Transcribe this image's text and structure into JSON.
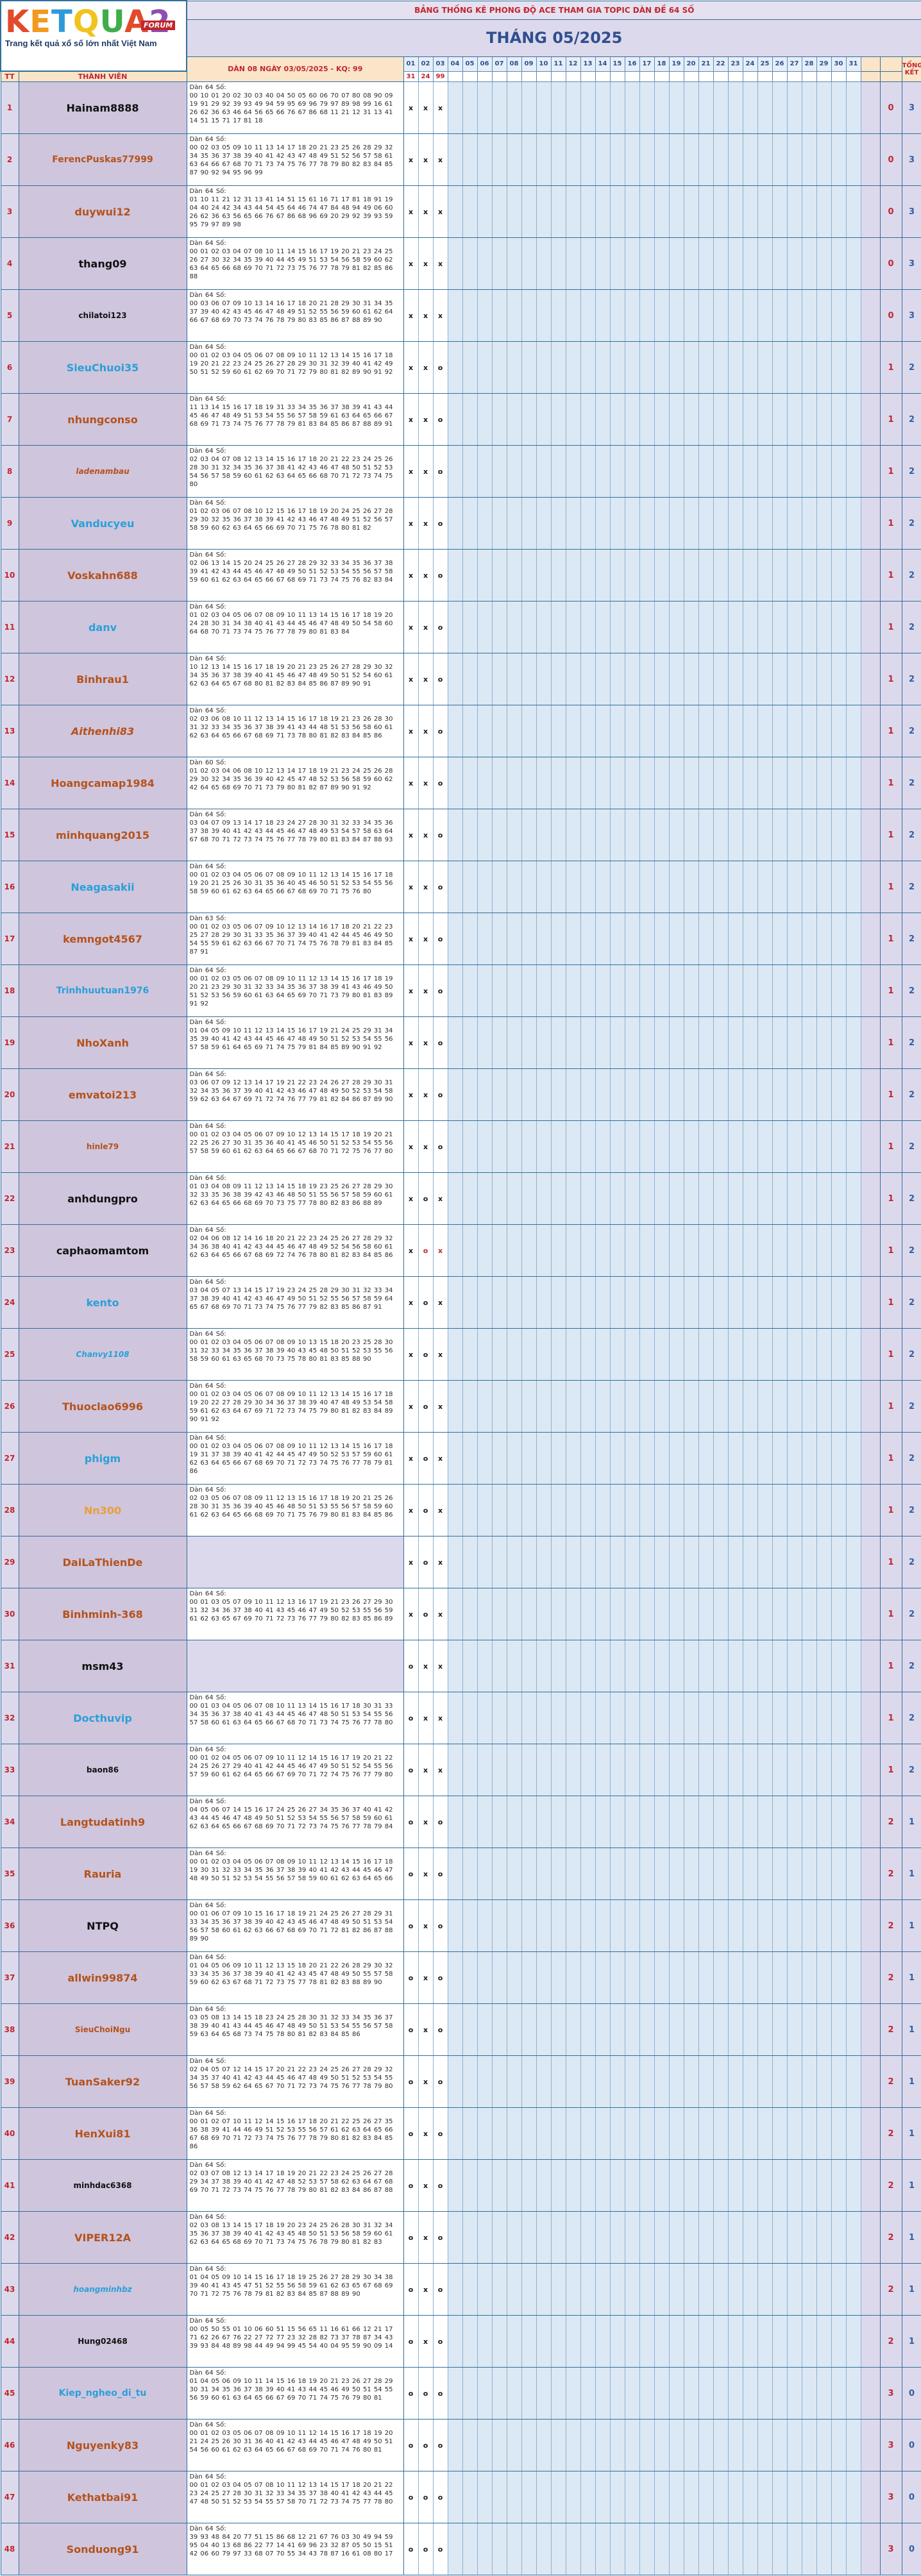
{
  "header": {
    "banner": "BẢNG THỐNG KÊ PHONG ĐỘ ACE THAM GIA TOPIC DÀN ĐỀ 64 SỐ",
    "month": "THÁNG 05/2025",
    "logo_text": "KETQUA2",
    "logo_forum": "FORUM",
    "logo_tagline": "Trang kết quả xổ số lớn nhất Việt Nam",
    "col_tt": "TT",
    "col_member": "THÀNH VIÊN",
    "col_dan": "DÀN 08 NGÀY 03/05/2025 - KQ: 99",
    "col_total": "TỔNG KẾT",
    "days": [
      "01",
      "02",
      "03",
      "04",
      "05",
      "06",
      "07",
      "08",
      "09",
      "10",
      "11",
      "12",
      "13",
      "14",
      "15",
      "16",
      "17",
      "18",
      "19",
      "20",
      "21",
      "22",
      "23",
      "24",
      "25",
      "26",
      "27",
      "28",
      "29",
      "30",
      "31"
    ],
    "results": [
      "31",
      "24",
      "99"
    ]
  },
  "rows": [
    {
      "tt": "1",
      "name": "Hainam8888",
      "color": "#111111",
      "dan": "Dàn 64 Số:\n00 10 01 20 02 30 03 40 04 50 05 60 06 70 07 80 08 90 09 19 91 29 92 39 93 49 94 59 95 69 96 79 97 89 98 99 16 61 26 62 36 63 46 64 56 65 66 76 67 86 68 11 21 12 31 13 41 14 51 15 71 17 81 18",
      "m": [
        "x",
        "x",
        "x"
      ],
      "a": "0",
      "b": "3"
    },
    {
      "tt": "2",
      "name": "FerencPuskas77999",
      "color": "#b5521b",
      "dan": "Dàn 64 Số:\n00 02 03 05 09 10 11 13 14 17 18 20 21 23 25 26 28 29 32 34 35 36 37 38 39 40 41 42 43 47 48 49 51 52 56 57 58 61 63 64 66 67 68 70 71 73 74 75 76 77 78 79 80 82 83 84 85 87 90 92 94 95 96 99",
      "m": [
        "x",
        "x",
        "x"
      ],
      "a": "0",
      "b": "3"
    },
    {
      "tt": "3",
      "name": "duywui12",
      "color": "#b5521b",
      "dan": "Dàn 64 Số:\n01 10 11 21 12 31 13 41 14 51 15 61 16 71 17 81 18 91 19 04 40 24 42 34 43 44 54 45 64 46 74 47 84 48 94 49 06 60 26 62 36 63 56 65 66 76 67 86 68 96 69 20 29 92 39 93 59 95 79 97 89 98",
      "m": [
        "x",
        "x",
        "x"
      ],
      "a": "0",
      "b": "3"
    },
    {
      "tt": "4",
      "name": "thang09",
      "color": "#111111",
      "dan": "Dàn 64 Số:\n00 01 02 03 04 07 08 10 11 14 15 16 17 19 20 21 23 24 25 26 27 30 32 34 35 39 40 44 45 49 51 53 54 56 58 59 60 62 63 64 65 66 68 69 70 71 72 73 75 76 77 78 79 81 82 85 86 88",
      "m": [
        "x",
        "x",
        "x"
      ],
      "a": "0",
      "b": "3"
    },
    {
      "tt": "5",
      "name": "chilatoi123",
      "color": "#111111",
      "dan": "Dàn 64 Số:\n00 03 06 07 09 10 13 14 16 17 18 20 21 28 29 30 31 34 35 37 39 40 42 43 45 46 47 48 49 51 52 55 56 59 60 61 62 64 66 67 68 69 70 73 74 76 78 79 80 83 85 86 87 88 89 90",
      "m": [
        "x",
        "x",
        "x"
      ],
      "a": "0",
      "b": "3"
    },
    {
      "tt": "6",
      "name": "SieuChuoi35",
      "color": "#2aa0d8",
      "dan": "Dàn 64 Số:\n00 01 02 03 04 05 06 07 08 09 10 11 12 13 14 15 16 17 18 19 20 21 22 23 24 25 26 27 28 29 30 31 32 39 40 41 42 49 50 51 52 59 60 61 62 69 70 71 72 79 80 81 82 89 90 91 92",
      "m": [
        "x",
        "x",
        "o"
      ],
      "a": "1",
      "b": "2"
    },
    {
      "tt": "7",
      "name": "nhungconso",
      "color": "#b5521b",
      "dan": "Dàn 64 Số:\n11 13 14 15 16 17 18 19 31 33 34 35 36 37 38 39 41 43 44 45 46 47 48 49 51 53 54 55 56 57 58 59 61 63 64 65 66 67 68 69 71 73 74 75 76 77 78 79 81 83 84 85 86 87 88 89 91",
      "m": [
        "x",
        "x",
        "o"
      ],
      "a": "1",
      "b": "2"
    },
    {
      "tt": "8",
      "name": "ladenambau",
      "color": "#b5521b",
      "dan": "Dàn 64 Số:\n02 03 04 07 08 12 13 14 15 16 17 18 20 21 22 23 24 25 26 28 30 31 32 34 35 36 37 38 41 42 43 46 47 48 50 51 52 53 54 56 57 58 59 60 61 62 63 64 65 66 68 70 71 72 73 74 75 80",
      "m": [
        "x",
        "x",
        "o"
      ],
      "a": "1",
      "b": "2"
    },
    {
      "tt": "9",
      "name": "Vanducyeu",
      "color": "#2aa0d8",
      "dan": "Dàn 64 Số:\n01 02 03 06 07 08 10 12 15 16 17 18 19 20 24 25 26 27 28 29 30 32 35 36 37 38 39 41 42 43 46 47 48 49 51 52 56 57 58 59 60 62 63 64 65 66 69 70 71 75 76 78 80 81 82",
      "m": [
        "x",
        "x",
        "o"
      ],
      "a": "1",
      "b": "2"
    },
    {
      "tt": "10",
      "name": "Voskahn688",
      "color": "#b5521b",
      "dan": "Dàn 64 Số:\n02 06 13 14 15 20 24 25 26 27 28 29 32 33 34 35 36 37 38 39 41 42 43 44 45 46 47 48 49 50 51 52 53 54 55 56 57 58 59 60 61 62 63 64 65 66 67 68 69 71 73 74 75 76 82 83 84",
      "m": [
        "x",
        "x",
        "o"
      ],
      "a": "1",
      "b": "2"
    },
    {
      "tt": "11",
      "name": "danv",
      "color": "#2aa0d8",
      "dan": "Dàn 64 Số:\n01 02 03 04 05 06 07 08 09 10 11 13 14 15 16 17 18 19 20 24 28 30 31 34 38 40 41 43 44 45 46 47 48 49 50 54 58 60 64 68 70 71 73 74 75 76 77 78 79 80 81 83 84",
      "m": [
        "x",
        "x",
        "o"
      ],
      "a": "1",
      "b": "2"
    },
    {
      "tt": "12",
      "name": "Binhrau1",
      "color": "#b5521b",
      "dan": "Dàn 64 Số:\n10 12 13 14 15 16 17 18 19 20 21 23 25 26 27 28 29 30 32 34 35 36 37 38 39 40 41 45 46 47 48 49 50 51 52 54 60 61 62 63 64 65 67 68 80 81 82 83 84 85 86 87 89 90 91",
      "m": [
        "x",
        "x",
        "o"
      ],
      "a": "1",
      "b": "2"
    },
    {
      "tt": "13",
      "name": "Aithenhi83",
      "color": "#b5521b",
      "dan": "Dàn 64 Số:\n02 03 06 08 10 11 12 13 14 15 16 17 18 19 21 23 26 28 30 31 32 33 34 35 36 37 38 39 41 43 44 48 51 53 56 58 60 61 62 63 64 65 66 67 68 69 71 73 78 80 81 82 83 84 85 86",
      "m": [
        "x",
        "x",
        "o"
      ],
      "a": "1",
      "b": "2"
    },
    {
      "tt": "14",
      "name": "Hoangcamap1984",
      "color": "#b5521b",
      "dan": "Dàn 60 Số:\n01 02 03 04 06 08 10 12 13 14 17 18 19 21 23 24 25 26 28 29 30 32 34 35 36 39 40 42 45 47 48 52 53 56 58 59 60 62 42 64 65 68 69 70 71 73 79 80 81 82 87 89 90 91 92",
      "m": [
        "x",
        "x",
        "o"
      ],
      "a": "1",
      "b": "2"
    },
    {
      "tt": "15",
      "name": "minhquang2015",
      "color": "#b5521b",
      "dan": "Dàn 64 Số:\n03 04 07 09 13 14 17 18 23 24 27 28 30 31 32 33 34 35 36 37 38 39 40 41 42 43 44 45 46 47 48 49 53 54 57 58 63 64 67 68 70 71 72 73 74 75 76 77 78 79 80 81 83 84 87 88 93",
      "m": [
        "x",
        "x",
        "o"
      ],
      "a": "1",
      "b": "2"
    },
    {
      "tt": "16",
      "name": "Neagasakii",
      "color": "#2aa0d8",
      "dan": "Dàn 64 Số:\n00 01 02 03 04 05 06 07 08 09 10 11 12 13 14 15 16 17 18 19 20 21 25 26 30 31 35 36 40 45 46 50 51 52 53 54 55 56 58 59 60 61 62 63 64 65 66 67 68 69 70 71 75 76 80",
      "m": [
        "x",
        "x",
        "o"
      ],
      "a": "1",
      "b": "2"
    },
    {
      "tt": "17",
      "name": "kemngot4567",
      "color": "#b5521b",
      "dan": "Dàn 63 Số:\n00 01 02 03 05 06 07 09 10 12 13 14 16 17 18 20 21 22 23 25 27 28 29 30 31 33 35 36 37 39 40 41 42 44 45 46 49 50 54 55 59 61 62 63 66 67 70 71 74 75 76 78 79 81 83 84 85 87 91",
      "m": [
        "x",
        "x",
        "o"
      ],
      "a": "1",
      "b": "2"
    },
    {
      "tt": "18",
      "name": "Trinhhuutuan1976",
      "color": "#2aa0d8",
      "dan": "Dàn 64 Số:\n00 01 02 03 05 06 07 08 09 10 11 12 13 14 15 16 17 18 19 20 21 23 29 30 31 32 33 34 35 36 37 38 39 41 43 46 49 50 51 52 53 56 59 60 61 63 64 65 69 70 71 73 79 80 81 83 89 91 92",
      "m": [
        "x",
        "x",
        "o"
      ],
      "a": "1",
      "b": "2"
    },
    {
      "tt": "19",
      "name": "NhoXanh",
      "color": "#b5521b",
      "dan": "Dàn 64 Số:\n01 04 05 09 10 11 12 13 14 15 16 17 19 21 24 25 29 31 34 35 39 40 41 42 43 44 45 46 47 48 49 50 51 52 53 54 55 56 57 58 59 61 64 65 69 71 74 75 79 81 84 85 89 90 91 92",
      "m": [
        "x",
        "x",
        "o"
      ],
      "a": "1",
      "b": "2"
    },
    {
      "tt": "20",
      "name": "emvatoi213",
      "color": "#b5521b",
      "dan": "Dàn 64 Số:\n03 06 07 09 12 13 14 17 19 21 22 23 24 26 27 28 29 30 31 32 34 35 36 37 39 40 41 42 43 46 47 48 49 50 52 53 54 58 59 62 63 64 67 69 71 72 74 76 77 79 81 82 84 86 87 89 90",
      "m": [
        "x",
        "x",
        "o"
      ],
      "a": "1",
      "b": "2"
    },
    {
      "tt": "21",
      "name": "hinle79",
      "color": "#b5521b",
      "dan": "Dàn 64 Số:\n00 01 02 03 04 05 06 07 09 10 12 13 14 15 17 18 19 20 21 22 25 26 27 30 31 35 36 40 41 45 46 50 51 52 53 54 55 56 57 58 59 60 61 62 63 64 65 66 67 68 70 71 72 75 76 77 80",
      "m": [
        "x",
        "x",
        "o"
      ],
      "a": "1",
      "b": "2"
    },
    {
      "tt": "22",
      "name": "anhdungpro",
      "color": "#111111",
      "dan": "Dàn 64 Số:\n01 03 04 08 09 11 12 13 14 15 18 19 23 25 26 27 28 29 30 32 33 35 36 38 39 42 43 46 48 50 51 55 56 57 58 59 60 61 62 63 64 65 66 68 69 70 73 75 77 78 80 82 83 86 88 89",
      "m": [
        "x",
        "o",
        "x"
      ],
      "a": "1",
      "b": "2"
    },
    {
      "tt": "23",
      "name": "caphaomamtom",
      "color": "#111111",
      "dan": "Dàn 64 Số:\n02 04 06 08 12 14 16 18 20 21 22 23 24 25 26 27 28 29 32 34 36 38 40 41 42 43 44 45 46 47 48 49 52 54 56 58 60 61 62 63 64 65 66 67 68 69 72 74 76 78 80 81 82 83 84 85 86",
      "m": [
        "x",
        "o",
        "x"
      ],
      "a": "1",
      "b": "2",
      "red": true
    },
    {
      "tt": "24",
      "name": "kento",
      "color": "#2aa0d8",
      "dan": "Dàn 64 Số:\n03 04 05 07 13 14 15 17 19 23 24 25 28 29 30 31 32 33 34 37 38 39 40 41 42 43 46 47 49 50 51 52 55 56 57 58 59 64 65 67 68 69 70 71 73 74 75 76 77 79 82 83 85 86 87 91",
      "m": [
        "x",
        "o",
        "x"
      ],
      "a": "1",
      "b": "2"
    },
    {
      "tt": "25",
      "name": "Chanvy1108",
      "color": "#2aa0d8",
      "dan": "Dàn 64 Số:\n00 01 02 03 04 05 06 07 08 09 10 13 15 18 20 23 25 28 30 31 32 33 34 35 36 37 38 39 40 43 45 48 50 51 52 53 55 56 58 59 60 61 63 65 68 70 73 75 78 80 81 83 85 88 90",
      "m": [
        "x",
        "o",
        "x"
      ],
      "a": "1",
      "b": "2"
    },
    {
      "tt": "26",
      "name": "Thuoclao6996",
      "color": "#b5521b",
      "dan": "Dàn 64 Số:\n00 01 02 03 04 05 06 07 08 09 10 11 12 13 14 15 16 17 18 19 20 22 27 28 29 30 34 36 37 38 39 40 47 48 49 53 54 58 59 61 62 63 64 67 69 71 72 73 74 75 79 80 81 82 83 84 89 90 91 92",
      "m": [
        "x",
        "o",
        "x"
      ],
      "a": "1",
      "b": "2"
    },
    {
      "tt": "27",
      "name": "phigm",
      "color": "#2aa0d8",
      "dan": "Dàn 64 Số:\n00 01 02 03 04 05 06 07 08 09 10 11 12 13 14 15 16 17 18 19 31 37 38 39 40 41 42 44 45 47 49 50 52 53 57 59 60 61 62 63 64 65 66 67 68 69 70 71 72 73 74 75 76 77 78 79 81 86",
      "m": [
        "x",
        "o",
        "x"
      ],
      "a": "1",
      "b": "2"
    },
    {
      "tt": "28",
      "name": "Nn300",
      "color": "#e8a03a",
      "dan": "Dàn 64 Số:\n02 03 05 06 07 08 09 11 12 13 15 16 17 18 19 20 21 25 26 28 30 31 35 36 39 40 45 46 48 50 51 53 55 56 57 58 59 60 61 62 63 64 65 66 68 69 70 71 75 76 79 80 81 83 84 85 86",
      "m": [
        "x",
        "o",
        "x"
      ],
      "a": "1",
      "b": "2"
    },
    {
      "tt": "29",
      "name": "DaiLaThienDe",
      "color": "#b5521b",
      "dan": "",
      "m": [
        "x",
        "o",
        "x"
      ],
      "a": "1",
      "b": "2"
    },
    {
      "tt": "30",
      "name": "Binhminh-368",
      "color": "#b5521b",
      "dan": "Dàn 64 Số:\n00 01 03 05 07 09 10 11 12 13 16 17 19 21 23 26 27 29 30 31 32 34 36 37 38 40 41 43 45 46 47 49 50 52 53 55 56 59 61 62 63 65 67 69 70 71 72 73 76 77 79 80 82 83 85 86 89",
      "m": [
        "x",
        "o",
        "x"
      ],
      "a": "1",
      "b": "2"
    },
    {
      "tt": "31",
      "name": "msm43",
      "color": "#111111",
      "dan": "",
      "m": [
        "o",
        "x",
        "x"
      ],
      "a": "1",
      "b": "2"
    },
    {
      "tt": "32",
      "name": "Docthuvip",
      "color": "#2aa0d8",
      "dan": "Dàn 64 Số:\n00 01 03 04 05 06 07 08 10 11 13 14 15 16 17 18 30 31 33 34 35 36 37 38 40 41 43 44 45 46 47 48 50 51 53 54 55 56 57 58 60 61 63 64 65 66 67 68 70 71 73 74 75 76 77 78 80",
      "m": [
        "o",
        "x",
        "x"
      ],
      "a": "1",
      "b": "2"
    },
    {
      "tt": "33",
      "name": "baon86",
      "color": "#111111",
      "dan": "Dàn 64 Số:\n00 01 02 04 05 06 07 09 10 11 12 14 15 16 17 19 20 21 22 24 25 26 27 29 40 41 42 44 45 46 47 49 50 51 52 54 55 56 57 59 60 61 62 64 65 66 67 69 70 71 72 74 75 76 77 79 80",
      "m": [
        "o",
        "x",
        "x"
      ],
      "a": "1",
      "b": "2"
    },
    {
      "tt": "34",
      "name": "Langtudatinh9",
      "color": "#b5521b",
      "dan": "Dàn 64 Số:\n04 05 06 07 14 15 16 17 24 25 26 27 34 35 36 37 40 41 42 43 44 45 46 47 48 49 50 51 52 53 54 55 56 57 58 59 60 61 62 63 64 65 66 67 68 69 70 71 72 73 74 75 76 77 78 79 84",
      "m": [
        "o",
        "x",
        "o"
      ],
      "a": "2",
      "b": "1"
    },
    {
      "tt": "35",
      "name": "Rauria",
      "color": "#b5521b",
      "dan": "Dàn 64 Số:\n00 01 02 03 04 05 06 07 08 09 10 11 12 13 14 15 16 17 18 19 30 31 32 33 34 35 36 37 38 39 40 41 42 43 44 45 46 47 48 49 50 51 52 53 54 55 56 57 58 59 60 61 62 63 64 65 66",
      "m": [
        "o",
        "x",
        "o"
      ],
      "a": "2",
      "b": "1"
    },
    {
      "tt": "36",
      "name": "NTPQ",
      "color": "#111111",
      "dan": "Dàn 64 Số:\n00 01 06 07 09 10 15 16 17 18 19 21 24 25 26 27 28 29 31 33 34 35 36 37 38 39 40 42 43 45 46 47 48 49 50 51 53 54 56 57 58 60 61 62 63 66 67 68 69 70 71 72 81 82 86 87 88 89 90",
      "m": [
        "o",
        "x",
        "o"
      ],
      "a": "2",
      "b": "1"
    },
    {
      "tt": "37",
      "name": "allwin99874",
      "color": "#b5521b",
      "dan": "Dàn 64 Số:\n01 04 05 06 09 10 11 12 13 15 18 20 21 22 26 28 29 30 32 33 34 35 36 37 38 39 40 41 42 43 45 47 48 49 50 55 57 58 59 60 62 63 67 68 71 72 73 75 77 78 81 82 83 88 89 90",
      "m": [
        "o",
        "x",
        "o"
      ],
      "a": "2",
      "b": "1"
    },
    {
      "tt": "38",
      "name": "SieuChoiNgu",
      "color": "#b5521b",
      "dan": "Dàn 64 Số:\n03 05 08 13 14 15 18 23 24 25 28 30 31 32 33 34 35 36 37 38 39 40 41 43 44 45 46 47 48 49 50 51 53 54 55 56 57 58 59 63 64 65 68 73 74 75 78 80 81 82 83 84 85 86",
      "m": [
        "o",
        "x",
        "o"
      ],
      "a": "2",
      "b": "1"
    },
    {
      "tt": "39",
      "name": "TuanSaker92",
      "color": "#b5521b",
      "dan": "Dàn 64 Số:\n02 04 05 07 12 14 15 17 20 21 22 23 24 25 26 27 28 29 32 34 35 37 40 41 42 43 44 45 46 47 48 49 50 51 52 53 54 55 56 57 58 59 62 64 65 67 70 71 72 73 74 75 76 77 78 79 80",
      "m": [
        "o",
        "x",
        "o"
      ],
      "a": "2",
      "b": "1"
    },
    {
      "tt": "40",
      "name": "HenXui81",
      "color": "#b5521b",
      "dan": "Dàn 64 Số:\n00 01 02 07 10 11 12 14 15 16 17 18 20 21 22 25 26 27 35 36 38 39 41 44 46 49 51 52 53 55 56 57 61 62 63 64 65 66 67 68 69 70 71 72 73 74 75 76 77 78 79 80 81 82 83 84 85 86",
      "m": [
        "o",
        "x",
        "o"
      ],
      "a": "2",
      "b": "1"
    },
    {
      "tt": "41",
      "name": "minhdac6368",
      "color": "#111111",
      "dan": "Dàn 64 Số:\n02 03 07 08 12 13 14 17 18 19 20 21 22 23 24 25 26 27 28 29 34 37 38 39 40 41 42 47 48 52 53 57 58 62 63 64 67 68 69 70 71 72 73 74 75 76 77 78 79 80 81 82 83 84 86 87 88",
      "m": [
        "o",
        "x",
        "o"
      ],
      "a": "2",
      "b": "1"
    },
    {
      "tt": "42",
      "name": "VIPER12A",
      "color": "#b5521b",
      "dan": "Dàn 64 Số:\n02 03 08 13 14 15 17 18 19 20 23 24 25 26 28 30 31 32 34 35 36 37 38 39 40 41 42 43 45 48 50 51 53 56 58 59 60 61 62 63 64 65 68 69 70 71 73 74 75 76 78 79 80 81 82 83",
      "m": [
        "o",
        "x",
        "o"
      ],
      "a": "2",
      "b": "1"
    },
    {
      "tt": "43",
      "name": "hoangminhbz",
      "color": "#2aa0d8",
      "dan": "Dàn 64 Số:\n01 04 05 09 10 14 15 16 17 18 19 25 26 27 28 29 30 34 38 39 40 41 43 45 47 51 52 55 56 58 59 61 62 63 65 67 68 69 70 71 72 75 76 78 79 81 82 83 84 85 87 88 89 90",
      "m": [
        "o",
        "x",
        "o"
      ],
      "a": "2",
      "b": "1"
    },
    {
      "tt": "44",
      "name": "Hung02468",
      "color": "#111111",
      "dan": "Dàn 64 Số:\n00 05 50 55 01 10 06 60 51 15 56 65 11 16 61 66 12 21 17 71 62 26 67 76 22 27 72 77 23 32 28 82 73 37 78 87 34 43 39 93 84 48 89 98 44 49 94 99 45 54 40 04 95 59 90 09 14",
      "m": [
        "o",
        "x",
        "o"
      ],
      "a": "2",
      "b": "1"
    },
    {
      "tt": "45",
      "name": "Kiep_ngheo_di_tu",
      "color": "#2aa0d8",
      "dan": "Dàn 64 Số:\n01 04 05 06 09 10 11 14 15 16 18 19 20 21 23 26 27 28 29 30 31 34 35 36 37 38 39 40 41 43 44 45 46 49 50 51 54 55 56 59 60 61 63 64 65 66 67 69 70 71 74 75 76 79 80 81",
      "m": [
        "o",
        "o",
        "o"
      ],
      "a": "3",
      "b": "0"
    },
    {
      "tt": "46",
      "name": "Nguyenky83",
      "color": "#b5521b",
      "dan": "Dàn 64 Số:\n00 01 02 03 05 06 07 08 09 10 11 12 14 15 16 17 18 19 20 21 24 25 26 30 31 36 40 41 42 43 44 45 46 47 48 49 50 51 54 56 60 61 62 63 64 65 66 67 68 69 70 71 74 76 80 81",
      "m": [
        "o",
        "o",
        "o"
      ],
      "a": "3",
      "b": "0"
    },
    {
      "tt": "47",
      "name": "Kethatbai91",
      "color": "#b5521b",
      "dan": "Dàn 64 Số:\n00 01 02 03 04 05 07 08 10 11 12 13 14 15 17 18 20 21 22 23 24 25 27 28 30 31 32 33 34 35 37 38 40 41 42 43 44 45 47 48 50 51 52 53 54 55 57 58 70 71 72 73 74 75 77 78 80",
      "m": [
        "o",
        "o",
        "o"
      ],
      "a": "3",
      "b": "0"
    },
    {
      "tt": "48",
      "name": "Sonduong91",
      "color": "#b5521b",
      "dan": "Dàn 64 Số:\n39 93 48 84 20 77 51 15 86 68 12 21 67 76 03 30 49 94 59 95 04 40 13 68 86 22 77 14 41 69 96 23 32 87 05 50 15 51 42 06 60 79 97 33 68 07 70 55 34 43 78 87 16 61 08 80 17",
      "m": [
        "o",
        "o",
        "o"
      ],
      "a": "3",
      "b": "0"
    }
  ]
}
